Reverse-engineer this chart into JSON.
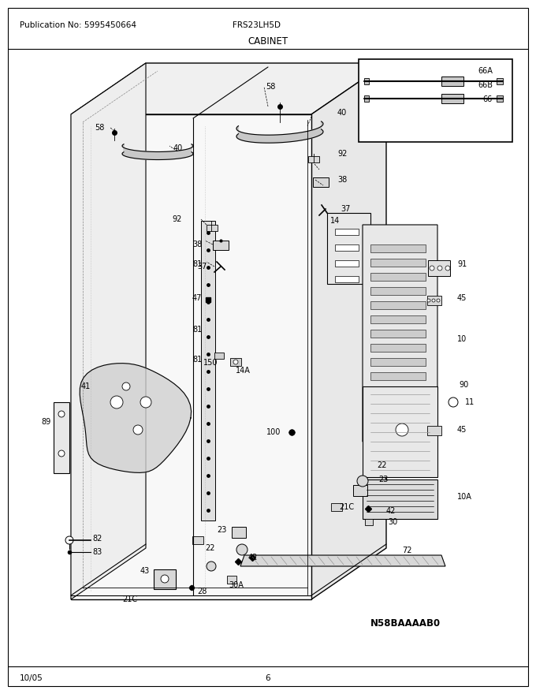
{
  "publication_no": "Publication No: 5995450664",
  "model": "FRS23LH5D",
  "section": "CABINET",
  "date": "10/05",
  "page": "6",
  "diagram_id": "N58BAAAAB0",
  "bg_color": "#ffffff",
  "fig_width": 6.8,
  "fig_height": 8.8,
  "dpi": 100
}
